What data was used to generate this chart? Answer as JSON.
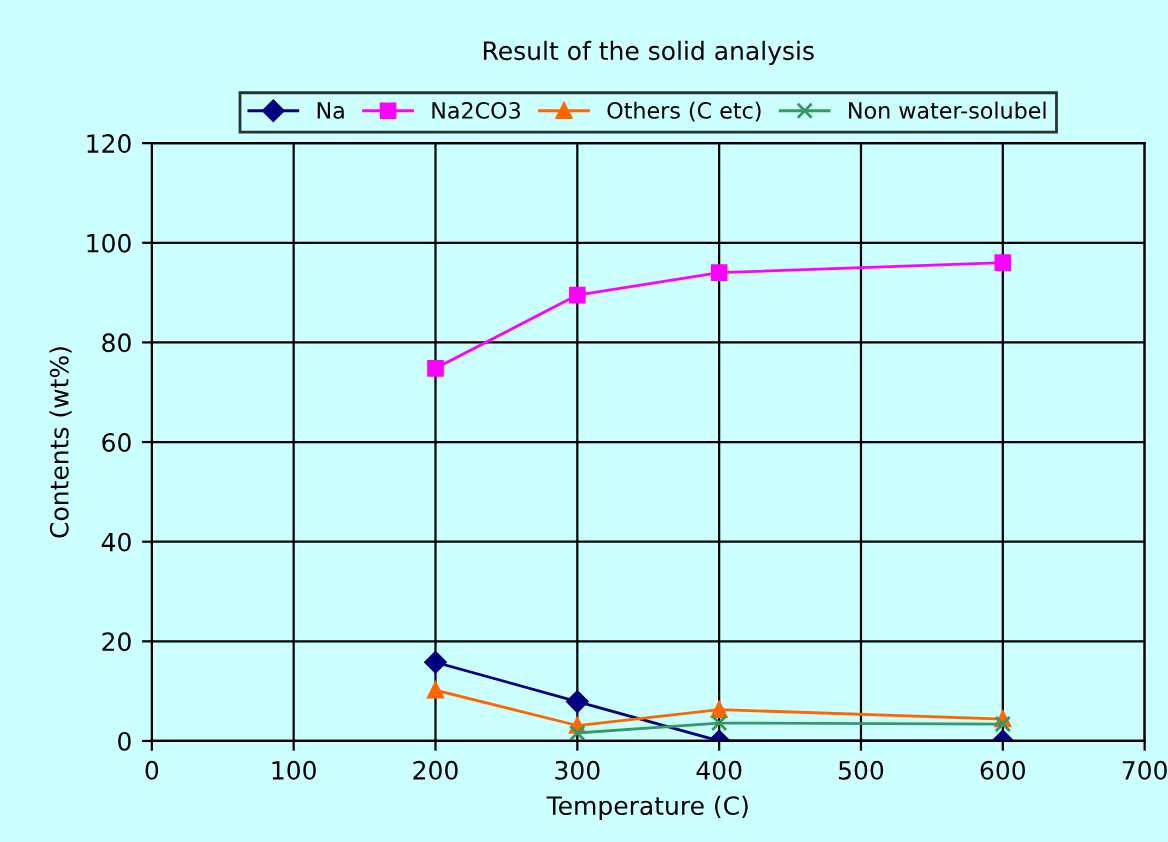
{
  "chart_data": {
    "type": "line",
    "title": "Result of the solid analysis",
    "xlabel": "Temperature (C)",
    "ylabel": "Contents (wt%)",
    "xlim": [
      0,
      700
    ],
    "xticks": [
      0,
      100,
      200,
      300,
      400,
      500,
      600,
      700
    ],
    "ylim": [
      0,
      120
    ],
    "yticks": [
      0,
      20,
      40,
      60,
      80,
      100,
      120
    ],
    "grid": true,
    "legend": "top",
    "series": [
      {
        "name": "Na",
        "color": "#000080",
        "marker": "diamond",
        "x": [
          200,
          300,
          400,
          600
        ],
        "values": [
          15.8,
          7.9,
          0,
          0
        ]
      },
      {
        "name": "Na2CO3",
        "color": "#ff00ff",
        "marker": "square",
        "x": [
          200,
          300,
          400,
          600
        ],
        "values": [
          74.8,
          89.5,
          94,
          96
        ]
      },
      {
        "name": "Others (C etc)",
        "color": "#ff6600",
        "marker": "triangle",
        "x": [
          200,
          300,
          400,
          600
        ],
        "values": [
          10.2,
          3.1,
          6.3,
          4.4
        ]
      },
      {
        "name": "Non water-solubel",
        "color": "#339966",
        "marker": "cross",
        "x": [
          300,
          400,
          600
        ],
        "values": [
          1.6,
          3.6,
          3.4
        ]
      }
    ]
  }
}
